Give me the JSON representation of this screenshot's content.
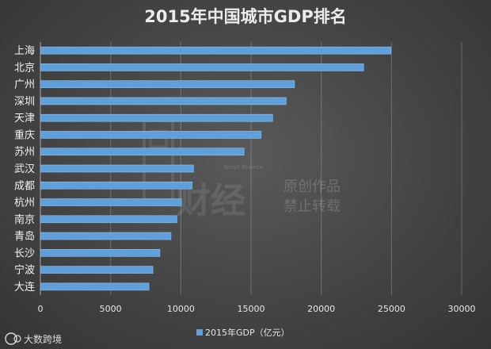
{
  "chart_data": {
    "type": "bar",
    "orientation": "horizontal",
    "title": "2015年中国城市GDP排名",
    "categories": [
      "上海",
      "北京",
      "广州",
      "深圳",
      "天津",
      "重庆",
      "苏州",
      "武汉",
      "成都",
      "杭州",
      "南京",
      "青岛",
      "长沙",
      "宁波",
      "大连"
    ],
    "series": [
      {
        "name": "2015年GDP（亿元）",
        "values": [
          24965,
          23015,
          18100,
          17503,
          16538,
          15720,
          14500,
          10906,
          10801,
          10054,
          9721,
          9300,
          8510,
          8012,
          7732
        ]
      }
    ],
    "xlim": [
      0,
      30000
    ],
    "xticks": [
      0,
      5000,
      10000,
      15000,
      20000,
      25000,
      30000
    ],
    "grid": true,
    "legend_position": "bottom",
    "bar_color": "#5f9fda"
  },
  "watermark": {
    "brand": "财经",
    "brand_en": "Smart Finance",
    "side_line1": "原创作品",
    "side_line2": "禁止转载"
  },
  "footer": {
    "logo_text": "大数跨境"
  }
}
